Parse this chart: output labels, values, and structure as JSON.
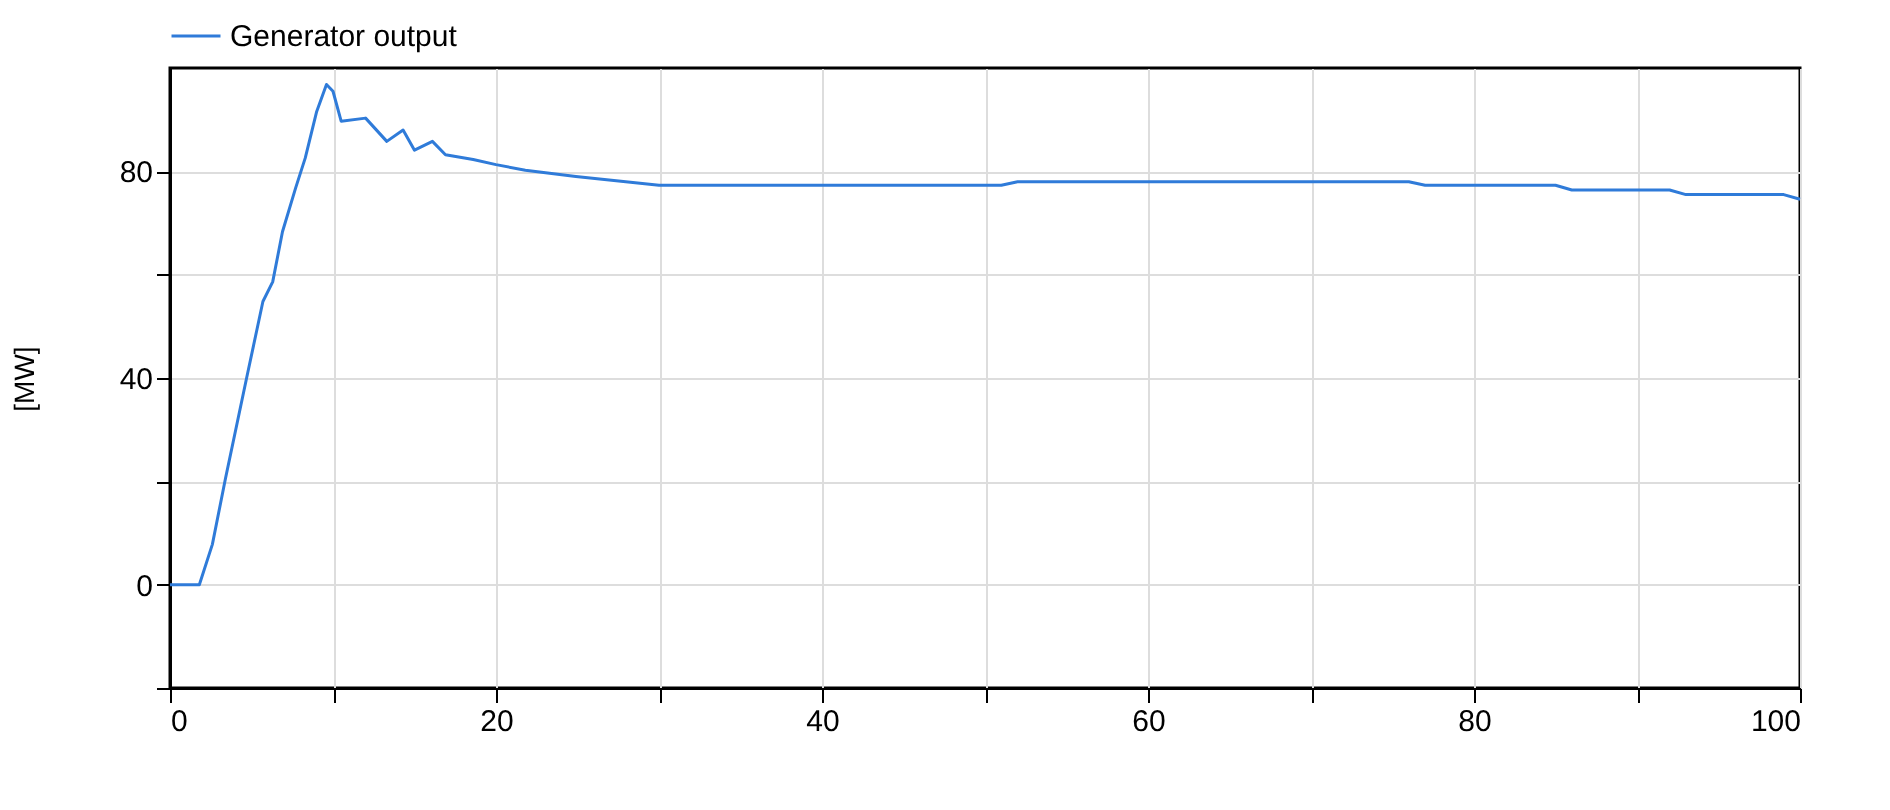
{
  "chart_data": {
    "type": "line",
    "ylabel": "[MW]",
    "legend": "top left",
    "grid": true,
    "marker": "none",
    "line_style": "solid",
    "xlim": [
      0,
      100
    ],
    "xticks": [
      0,
      {
        "value": 10,
        "label": null
      },
      20,
      {
        "value": 30,
        "label": null
      },
      40,
      {
        "value": 50,
        "label": null
      },
      60,
      {
        "value": 70,
        "label": null
      },
      80,
      {
        "value": 90,
        "label": null
      },
      100
    ],
    "ylim": [
      -20,
      100
    ],
    "yticks": [
      {
        "value": -20,
        "label": null
      },
      0,
      {
        "value": 20,
        "label": null
      },
      40,
      {
        "value": 60,
        "label": null
      },
      80
    ],
    "x": [
      0,
      1.8,
      2.6,
      3.4,
      4.7,
      5.7,
      6.3,
      6.9,
      7.7,
      8.3,
      9.0,
      9.6,
      10.0,
      10.5,
      12.0,
      13.3,
      14.3,
      15.0,
      16.1,
      16.9,
      18.6,
      20.0,
      21.8,
      24.9,
      30,
      51,
      52,
      76,
      77,
      85,
      86,
      92,
      93,
      99,
      100
    ],
    "series": [
      {
        "name": "Generator output",
        "color": "#2f7bd9",
        "values": [
          0,
          0,
          7.8,
          20.5,
          40,
          54.8,
          58.6,
          68.3,
          76.7,
          82.6,
          91.6,
          96.8,
          95.5,
          89.7,
          90.3,
          85.8,
          88,
          84.1,
          85.8,
          83.2,
          82.3,
          81.3,
          80.2,
          79,
          77.3,
          77.3,
          78,
          78,
          77.3,
          77.3,
          76.4,
          76.4,
          75.5,
          75.5,
          74.6
        ]
      }
    ]
  }
}
